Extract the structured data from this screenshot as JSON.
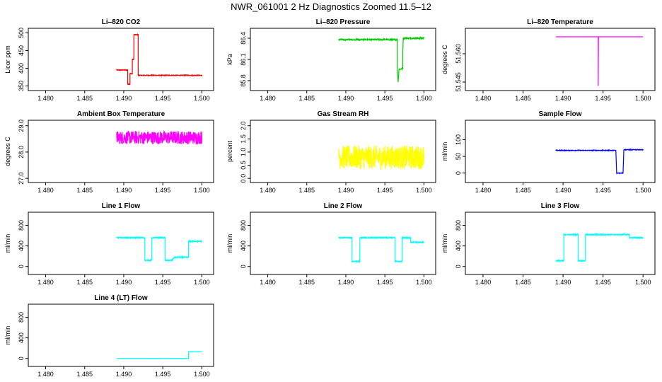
{
  "title": "NWR_061001  2 Hz Diagnostics Zoomed 11.5–12",
  "colors": {
    "red": "#ff0000",
    "green": "#00cc00",
    "magenta": "#ff00ff",
    "yellow": "#ffff00",
    "blue": "#0000ff",
    "cyan": "#00ffff"
  },
  "chart_data": [
    {
      "type": "line",
      "title": "Li–820 CO2",
      "ylabel": "Licor ppm",
      "color": "red",
      "xlim": [
        1.4891,
        1.5
      ],
      "ylim": [
        345,
        505
      ],
      "xticks": [
        "1.490",
        "1.495",
        "1.500"
      ],
      "xtick_values": [
        1.49,
        1.495,
        1.5
      ],
      "yticks": [
        "350",
        "400",
        "450",
        "500"
      ],
      "ytick_values": [
        350,
        400,
        450,
        500
      ],
      "noise": 1,
      "x": [
        1.4891,
        1.4897,
        1.4897,
        1.4905,
        1.4905,
        1.4908,
        1.4908,
        1.4911,
        1.4911,
        1.4913,
        1.4913,
        1.4918,
        1.4918,
        1.49185,
        1.49185,
        1.4948,
        1.4948,
        1.4954,
        1.4954,
        1.4958,
        1.4958,
        1.5
      ],
      "y": [
        395,
        395,
        395,
        395,
        355,
        355,
        385,
        385,
        425,
        425,
        495,
        495,
        495,
        495,
        380,
        380,
        380,
        380,
        380,
        380,
        380,
        380
      ]
    },
    {
      "type": "line",
      "title": "Li–820 Pressure",
      "ylabel": "kPa",
      "color": "green",
      "xlim": [
        1.4891,
        1.5
      ],
      "ylim": [
        85.7,
        86.5
      ],
      "xticks": [
        "1.490",
        "1.495",
        "1.500"
      ],
      "xtick_values": [
        1.49,
        1.495,
        1.5
      ],
      "yticks": [
        "85.8",
        "86.1",
        "86.4"
      ],
      "ytick_values": [
        85.8,
        86.1,
        86.4
      ],
      "noise": 0.01,
      "x": [
        1.4891,
        1.4966,
        1.4966,
        1.4967,
        1.4967,
        1.4968,
        1.4968,
        1.4973,
        1.4973,
        1.49735,
        1.49735,
        1.5
      ],
      "y": [
        86.38,
        86.38,
        85.95,
        85.78,
        85.78,
        85.95,
        85.96,
        85.97,
        86.2,
        86.4,
        86.4,
        86.4
      ]
    },
    {
      "type": "line",
      "title": "Li–820 Temperature",
      "ylabel": "degrees C",
      "color": "magenta",
      "xlim": [
        1.4891,
        1.5
      ],
      "ylim": [
        51.542,
        51.572
      ],
      "xticks": [
        "1.490",
        "1.495",
        "1.500"
      ],
      "xtick_values": [
        1.49,
        1.495,
        1.5
      ],
      "yticks": [
        "51.545",
        "51.560"
      ],
      "ytick_values": [
        51.545,
        51.56
      ],
      "noise": 0,
      "x": [
        1.4891,
        1.4944,
        1.4944,
        1.49443,
        1.49443,
        1.5
      ],
      "y": [
        51.569,
        51.569,
        51.543,
        51.569,
        51.569,
        51.569
      ]
    },
    {
      "type": "line",
      "title": "Ambient Box Temperature",
      "ylabel": "degrees C",
      "color": "magenta",
      "xlim": [
        1.4891,
        1.5
      ],
      "ylim": [
        26.95,
        29.1
      ],
      "xticks": [
        "1.490",
        "1.495",
        "1.500"
      ],
      "xtick_values": [
        1.49,
        1.495,
        1.5
      ],
      "yticks": [
        "27.0",
        "28.0",
        "29.0"
      ],
      "ytick_values": [
        27.0,
        28.0,
        29.0
      ],
      "noise": 0.25,
      "x": [
        1.4891,
        1.5
      ],
      "y": [
        28.55,
        28.55
      ]
    },
    {
      "type": "line",
      "title": "Gas Stream RH",
      "ylabel": "percent",
      "color": "yellow",
      "xlim": [
        1.4891,
        1.5
      ],
      "ylim": [
        -0.05,
        2.1
      ],
      "xticks": [
        "1.490",
        "1.495",
        "1.500"
      ],
      "xtick_values": [
        1.49,
        1.495,
        1.5
      ],
      "yticks": [
        "0.0",
        "0.5",
        "1.0",
        "1.5",
        "2.0"
      ],
      "ytick_values": [
        0.0,
        0.5,
        1.0,
        1.5,
        2.0
      ],
      "noise": 0.45,
      "x": [
        1.4891,
        1.5
      ],
      "y": [
        0.8,
        0.8
      ]
    },
    {
      "type": "line",
      "title": "Sample Flow",
      "ylabel": "ml/min",
      "color": "blue",
      "xlim": [
        1.4891,
        1.5
      ],
      "ylim": [
        -20,
        150
      ],
      "xticks": [
        "1.490",
        "1.495",
        "1.500"
      ],
      "xtick_values": [
        1.49,
        1.495,
        1.5
      ],
      "yticks": [
        "0",
        "50",
        "100"
      ],
      "ytick_values": [
        0,
        50,
        100
      ],
      "noise": 1,
      "x": [
        1.4891,
        1.4966,
        1.4966,
        1.4967,
        1.4967,
        1.4975,
        1.4975,
        1.4976,
        1.4976,
        1.5
      ],
      "y": [
        68,
        68,
        68,
        0,
        0,
        0,
        0,
        70,
        70,
        70
      ]
    },
    {
      "type": "line",
      "title": "Line 1 Flow",
      "ylabel": "ml/min",
      "color": "cyan",
      "xlim": [
        1.4891,
        1.5
      ],
      "ylim": [
        -100,
        1000
      ],
      "xticks": [
        "1.490",
        "1.495",
        "1.500"
      ],
      "xtick_values": [
        1.49,
        1.495,
        1.5
      ],
      "yticks": [
        "0",
        "400",
        "800"
      ],
      "ytick_values": [
        0,
        400,
        800
      ],
      "noise": 10,
      "x": [
        1.4891,
        1.4927,
        1.4927,
        1.4936,
        1.4936,
        1.4953,
        1.4953,
        1.4962,
        1.4962,
        1.4965,
        1.4965,
        1.4983,
        1.4983,
        1.5
      ],
      "y": [
        560,
        560,
        120,
        120,
        560,
        560,
        120,
        120,
        120,
        180,
        180,
        180,
        490,
        490
      ]
    },
    {
      "type": "line",
      "title": "Line 2 Flow",
      "ylabel": "ml/min",
      "color": "cyan",
      "xlim": [
        1.4891,
        1.5
      ],
      "ylim": [
        -100,
        1000
      ],
      "xticks": [
        "1.490",
        "1.495",
        "1.500"
      ],
      "xtick_values": [
        1.49,
        1.495,
        1.5
      ],
      "yticks": [
        "0",
        "400",
        "800"
      ],
      "ytick_values": [
        0,
        400,
        800
      ],
      "noise": 10,
      "x": [
        1.4891,
        1.4891,
        1.4892,
        1.4892,
        1.4908,
        1.4908,
        1.4918,
        1.4918,
        1.4963,
        1.4963,
        1.4972,
        1.4972,
        1.4983,
        1.4983,
        1.5
      ],
      "y": [
        560,
        560,
        560,
        560,
        560,
        100,
        100,
        560,
        560,
        100,
        100,
        560,
        560,
        470,
        470
      ]
    },
    {
      "type": "line",
      "title": "Line 3 Flow",
      "ylabel": "ml/min",
      "color": "cyan",
      "xlim": [
        1.4891,
        1.5
      ],
      "ylim": [
        -100,
        1000
      ],
      "xticks": [
        "1.490",
        "1.495",
        "1.500"
      ],
      "xtick_values": [
        1.49,
        1.495,
        1.5
      ],
      "yticks": [
        "0",
        "400",
        "800"
      ],
      "ytick_values": [
        0,
        400,
        800
      ],
      "noise": 10,
      "x": [
        1.4891,
        1.4901,
        1.4901,
        1.4919,
        1.4919,
        1.4928,
        1.4928,
        1.4983,
        1.4983,
        1.5
      ],
      "y": [
        110,
        110,
        620,
        620,
        110,
        110,
        620,
        620,
        560,
        560
      ]
    },
    {
      "type": "line",
      "title": "Line 4 (LT) Flow",
      "ylabel": "ml/min",
      "color": "cyan",
      "xlim": [
        1.4891,
        1.5
      ],
      "ylim": [
        -100,
        1000
      ],
      "xticks": [
        "1.480",
        "1.485",
        "1.490",
        "1.495",
        "1.500"
      ],
      "xtick_values": [
        1.48,
        1.485,
        1.49,
        1.495,
        1.5
      ],
      "yticks": [
        "0",
        "400",
        "800"
      ],
      "ytick_values": [
        0,
        400,
        800
      ],
      "noise": 2,
      "x": [
        1.4891,
        1.4983,
        1.4983,
        1.5
      ],
      "y": [
        0,
        0,
        130,
        130
      ]
    }
  ],
  "panel_xticks": [
    [
      "1.490",
      "1.495",
      "1.500"
    ]
  ]
}
